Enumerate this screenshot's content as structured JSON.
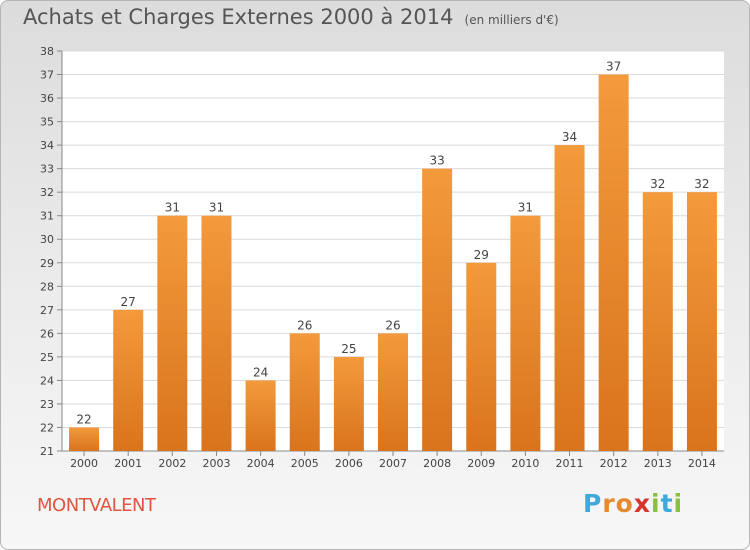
{
  "chart_data": {
    "type": "bar",
    "title": "Achats et Charges Externes 2000 à 2014",
    "subtitle": "(en milliers d'€)",
    "categories": [
      "2000",
      "2001",
      "2002",
      "2003",
      "2004",
      "2005",
      "2006",
      "2007",
      "2008",
      "2009",
      "2010",
      "2011",
      "2012",
      "2013",
      "2014"
    ],
    "values": [
      22,
      27,
      31,
      31,
      24,
      26,
      25,
      26,
      33,
      29,
      31,
      34,
      37,
      32,
      32
    ],
    "ylim": [
      21,
      38
    ],
    "yticks": [
      "21",
      "22",
      "23",
      "24",
      "25",
      "26",
      "27",
      "28",
      "29",
      "30",
      "31",
      "32",
      "33",
      "34",
      "35",
      "36",
      "37",
      "38"
    ],
    "xlabel": "",
    "ylabel": "",
    "grid": "horizontal",
    "bar_color": "#f39a3c",
    "bar_color_dark": "#d9741c"
  },
  "commune": "MONTVALENT",
  "logo": {
    "letters": [
      "P",
      "r",
      "o",
      "x",
      "i",
      "t",
      "i"
    ],
    "colors": [
      "#3fa9dc",
      "#e58a2e",
      "#e58a2e",
      "#d9322a",
      "#8bbf3f",
      "#3fa9dc",
      "#8bbf3f"
    ]
  }
}
